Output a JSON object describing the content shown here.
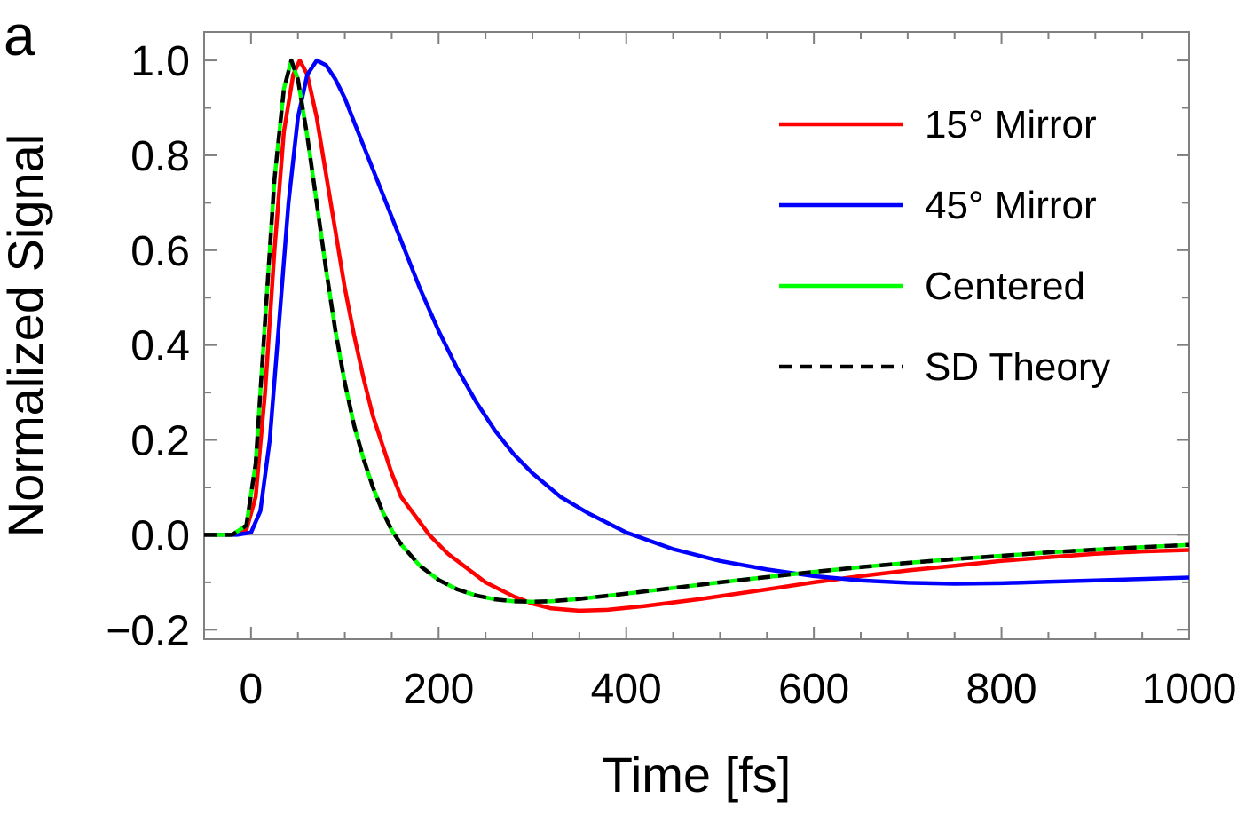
{
  "chart_data": {
    "type": "line",
    "panel_label": "a",
    "xlabel": "Time [fs]",
    "ylabel": "Normalized Signal",
    "xlim": [
      -50,
      1000
    ],
    "ylim": [
      -0.22,
      1.06
    ],
    "x_ticks": [
      0,
      200,
      400,
      600,
      800,
      1000
    ],
    "x_tick_labels": [
      "0",
      "200",
      "400",
      "600",
      "800",
      "1000"
    ],
    "y_ticks": [
      -0.2,
      0.0,
      0.2,
      0.4,
      0.6,
      0.8,
      1.0
    ],
    "y_tick_labels": [
      "−0.2",
      "0.0",
      "0.2",
      "0.4",
      "0.6",
      "0.8",
      "1.0"
    ],
    "zero_line": true,
    "grid": false,
    "legend_position": "right, upper",
    "series": [
      {
        "name": "15° Mirror",
        "color": "#ff0000",
        "dash": "solid",
        "points": [
          [
            -50,
            0
          ],
          [
            -20,
            0
          ],
          [
            -5,
            0.01
          ],
          [
            5,
            0.08
          ],
          [
            15,
            0.3
          ],
          [
            25,
            0.6
          ],
          [
            35,
            0.85
          ],
          [
            45,
            0.97
          ],
          [
            52,
            1.0
          ],
          [
            60,
            0.97
          ],
          [
            70,
            0.88
          ],
          [
            80,
            0.76
          ],
          [
            90,
            0.64
          ],
          [
            100,
            0.52
          ],
          [
            110,
            0.42
          ],
          [
            120,
            0.33
          ],
          [
            130,
            0.25
          ],
          [
            140,
            0.19
          ],
          [
            150,
            0.13
          ],
          [
            160,
            0.08
          ],
          [
            175,
            0.04
          ],
          [
            190,
            0.0
          ],
          [
            210,
            -0.04
          ],
          [
            230,
            -0.07
          ],
          [
            250,
            -0.1
          ],
          [
            280,
            -0.13
          ],
          [
            300,
            -0.145
          ],
          [
            320,
            -0.155
          ],
          [
            350,
            -0.16
          ],
          [
            380,
            -0.158
          ],
          [
            420,
            -0.15
          ],
          [
            480,
            -0.135
          ],
          [
            550,
            -0.115
          ],
          [
            600,
            -0.1
          ],
          [
            650,
            -0.087
          ],
          [
            700,
            -0.075
          ],
          [
            750,
            -0.065
          ],
          [
            800,
            -0.055
          ],
          [
            850,
            -0.047
          ],
          [
            900,
            -0.04
          ],
          [
            950,
            -0.035
          ],
          [
            1000,
            -0.032
          ]
        ]
      },
      {
        "name": "45° Mirror",
        "color": "#0000ff",
        "dash": "solid",
        "points": [
          [
            -50,
            0
          ],
          [
            -15,
            0
          ],
          [
            0,
            0.005
          ],
          [
            10,
            0.05
          ],
          [
            20,
            0.2
          ],
          [
            30,
            0.45
          ],
          [
            40,
            0.7
          ],
          [
            50,
            0.88
          ],
          [
            60,
            0.97
          ],
          [
            70,
            1.0
          ],
          [
            80,
            0.99
          ],
          [
            90,
            0.96
          ],
          [
            100,
            0.92
          ],
          [
            110,
            0.87
          ],
          [
            120,
            0.82
          ],
          [
            140,
            0.72
          ],
          [
            160,
            0.62
          ],
          [
            180,
            0.52
          ],
          [
            200,
            0.43
          ],
          [
            220,
            0.35
          ],
          [
            240,
            0.28
          ],
          [
            260,
            0.22
          ],
          [
            280,
            0.17
          ],
          [
            300,
            0.13
          ],
          [
            330,
            0.08
          ],
          [
            360,
            0.045
          ],
          [
            400,
            0.005
          ],
          [
            450,
            -0.03
          ],
          [
            500,
            -0.055
          ],
          [
            550,
            -0.073
          ],
          [
            600,
            -0.087
          ],
          [
            650,
            -0.096
          ],
          [
            700,
            -0.101
          ],
          [
            750,
            -0.103
          ],
          [
            800,
            -0.102
          ],
          [
            850,
            -0.099
          ],
          [
            900,
            -0.096
          ],
          [
            950,
            -0.093
          ],
          [
            1000,
            -0.09
          ]
        ]
      },
      {
        "name": "Centered",
        "color": "#00ff00",
        "dash": "solid",
        "points": [
          [
            -50,
            0
          ],
          [
            -20,
            0
          ],
          [
            -5,
            0.02
          ],
          [
            5,
            0.15
          ],
          [
            15,
            0.45
          ],
          [
            25,
            0.75
          ],
          [
            35,
            0.94
          ],
          [
            43,
            1.0
          ],
          [
            50,
            0.96
          ],
          [
            60,
            0.84
          ],
          [
            70,
            0.7
          ],
          [
            80,
            0.56
          ],
          [
            90,
            0.43
          ],
          [
            100,
            0.32
          ],
          [
            110,
            0.23
          ],
          [
            120,
            0.16
          ],
          [
            130,
            0.1
          ],
          [
            140,
            0.05
          ],
          [
            150,
            0.01
          ],
          [
            160,
            -0.02
          ],
          [
            180,
            -0.065
          ],
          [
            200,
            -0.095
          ],
          [
            220,
            -0.115
          ],
          [
            240,
            -0.128
          ],
          [
            260,
            -0.136
          ],
          [
            280,
            -0.14
          ],
          [
            300,
            -0.141
          ],
          [
            320,
            -0.14
          ],
          [
            350,
            -0.135
          ],
          [
            400,
            -0.124
          ],
          [
            450,
            -0.112
          ],
          [
            500,
            -0.1
          ],
          [
            550,
            -0.089
          ],
          [
            600,
            -0.078
          ],
          [
            650,
            -0.068
          ],
          [
            700,
            -0.059
          ],
          [
            750,
            -0.051
          ],
          [
            800,
            -0.044
          ],
          [
            850,
            -0.037
          ],
          [
            900,
            -0.031
          ],
          [
            950,
            -0.026
          ],
          [
            1000,
            -0.021
          ]
        ]
      },
      {
        "name": "SD Theory",
        "color": "#000000",
        "dash": "dashed",
        "points": [
          [
            -50,
            0
          ],
          [
            -20,
            0
          ],
          [
            -5,
            0.02
          ],
          [
            5,
            0.15
          ],
          [
            15,
            0.45
          ],
          [
            25,
            0.75
          ],
          [
            35,
            0.94
          ],
          [
            43,
            1.0
          ],
          [
            50,
            0.96
          ],
          [
            60,
            0.84
          ],
          [
            70,
            0.7
          ],
          [
            80,
            0.56
          ],
          [
            90,
            0.43
          ],
          [
            100,
            0.32
          ],
          [
            110,
            0.23
          ],
          [
            120,
            0.16
          ],
          [
            130,
            0.1
          ],
          [
            140,
            0.05
          ],
          [
            150,
            0.01
          ],
          [
            160,
            -0.02
          ],
          [
            180,
            -0.065
          ],
          [
            200,
            -0.095
          ],
          [
            220,
            -0.115
          ],
          [
            240,
            -0.128
          ],
          [
            260,
            -0.136
          ],
          [
            280,
            -0.14
          ],
          [
            300,
            -0.141
          ],
          [
            320,
            -0.14
          ],
          [
            350,
            -0.135
          ],
          [
            400,
            -0.124
          ],
          [
            450,
            -0.112
          ],
          [
            500,
            -0.1
          ],
          [
            550,
            -0.089
          ],
          [
            600,
            -0.078
          ],
          [
            650,
            -0.068
          ],
          [
            700,
            -0.059
          ],
          [
            750,
            -0.051
          ],
          [
            800,
            -0.044
          ],
          [
            850,
            -0.037
          ],
          [
            900,
            -0.031
          ],
          [
            950,
            -0.026
          ],
          [
            1000,
            -0.021
          ]
        ]
      }
    ]
  }
}
